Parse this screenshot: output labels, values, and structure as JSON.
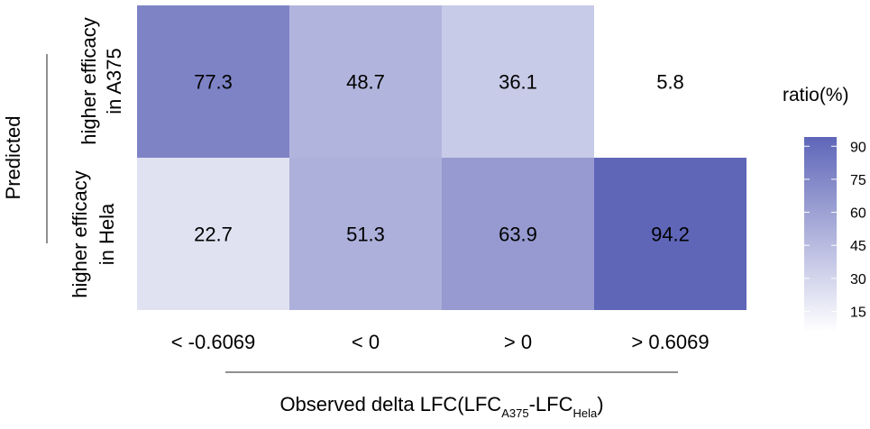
{
  "chart_data": {
    "type": "heatmap",
    "title": "",
    "y_title": "Predicted",
    "x_title": {
      "main": "Observed delta LFC(LFC",
      "sub1": "A375",
      "dash": "-LFC",
      "sub2": "Hela",
      "close": ")"
    },
    "x_categories": [
      "< -0.6069",
      "< 0",
      "> 0",
      "> 0.6069"
    ],
    "y_categories": [
      {
        "line1": "higher efficacy",
        "line2": "in A375"
      },
      {
        "line1": "higher efficacy",
        "line2": "in Hela"
      }
    ],
    "values": [
      [
        77.3,
        48.7,
        36.1,
        5.8
      ],
      [
        22.7,
        51.3,
        63.9,
        94.2
      ]
    ],
    "color_low": "#ffffff",
    "color_high": "#5f66b8",
    "legend": {
      "title": "ratio(%)",
      "ticks": [
        90,
        75,
        60,
        45,
        30,
        15
      ],
      "range": [
        5.8,
        94.2
      ],
      "placement": "right"
    }
  }
}
